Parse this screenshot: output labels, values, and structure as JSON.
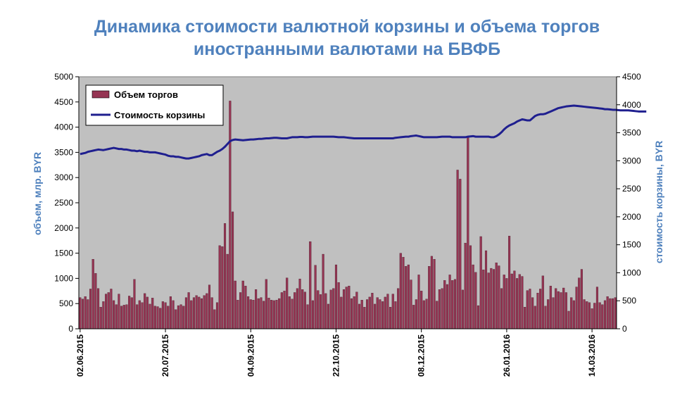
{
  "chart_data": {
    "type": "bar",
    "title_line1": "Динамика стоимости валютной корзины и объема торгов",
    "title_line2": "иностранными валютами на БВФБ",
    "ylabel": "объем, млр. BYR",
    "y2label": "стоимость корзины, BYR",
    "ylim": [
      0,
      5000
    ],
    "y2lim": [
      0,
      4500
    ],
    "y_ticks": [
      "0",
      "500",
      "1000",
      "1500",
      "2000",
      "2500",
      "3000",
      "3500",
      "4000",
      "4500",
      "5000"
    ],
    "y2_ticks": [
      "0",
      "500",
      "1000",
      "1500",
      "2000",
      "2500",
      "3000",
      "3500",
      "4000",
      "4500"
    ],
    "x_tick_labels": [
      "02.06.2015",
      "20.07.2015",
      "04.09.2015",
      "22.10.2015",
      "08.12.2015",
      "26.01.2016",
      "14.03.2016"
    ],
    "x_tick_indices": [
      0,
      33,
      66,
      99,
      132,
      165,
      198
    ],
    "legend_position": "top-left",
    "grid": false,
    "colors": {
      "bars": "#953553",
      "line": "#1f1f8f",
      "plot_bg": "#c0c0c0",
      "label": "#4f81bd"
    },
    "series": [
      {
        "name": "Объем торгов",
        "kind": "bar",
        "axis": "left",
        "values": [
          620,
          590,
          640,
          580,
          790,
          1380,
          1100,
          800,
          430,
          540,
          690,
          720,
          790,
          560,
          480,
          690,
          450,
          470,
          480,
          650,
          620,
          980,
          480,
          560,
          520,
          700,
          630,
          490,
          610,
          450,
          440,
          410,
          540,
          520,
          450,
          640,
          560,
          380,
          460,
          480,
          450,
          620,
          720,
          560,
          620,
          660,
          630,
          600,
          660,
          700,
          870,
          620,
          380,
          520,
          1650,
          1630,
          2090,
          1480,
          4520,
          2320,
          950,
          570,
          720,
          950,
          850,
          640,
          580,
          570,
          780,
          600,
          620,
          550,
          980,
          610,
          570,
          560,
          570,
          600,
          720,
          750,
          1010,
          640,
          590,
          720,
          800,
          990,
          780,
          730,
          480,
          1730,
          560,
          1260,
          760,
          680,
          1480,
          700,
          490,
          770,
          800,
          1270,
          920,
          630,
          780,
          830,
          850,
          600,
          640,
          730,
          490,
          570,
          430,
          580,
          630,
          710,
          490,
          620,
          580,
          540,
          630,
          690,
          430,
          690,
          540,
          800,
          1500,
          1420,
          1240,
          1270,
          970,
          470,
          580,
          1070,
          750,
          560,
          590,
          1240,
          1440,
          1380,
          550,
          780,
          800,
          960,
          880,
          1070,
          960,
          980,
          3150,
          2970,
          770,
          1700,
          3800,
          1650,
          1270,
          1120,
          460,
          1830,
          1170,
          1550,
          1110,
          1200,
          1180,
          1310,
          1250,
          800,
          1070,
          1000,
          1840,
          1090,
          1150,
          1000,
          1080,
          1040,
          430,
          760,
          790,
          620,
          450,
          710,
          790,
          1050,
          450,
          580,
          850,
          620,
          800,
          740,
          720,
          810,
          720,
          350,
          620,
          560,
          830,
          1010,
          1180,
          580,
          540,
          520,
          400,
          510,
          830,
          520,
          480,
          560,
          640,
          600,
          600,
          620
        ]
      },
      {
        "name": "Стоимость корзины",
        "kind": "line",
        "axis": "right",
        "values": [
          3120,
          3130,
          3140,
          3160,
          3170,
          3180,
          3190,
          3200,
          3195,
          3190,
          3200,
          3210,
          3220,
          3230,
          3220,
          3210,
          3210,
          3200,
          3200,
          3190,
          3180,
          3180,
          3170,
          3180,
          3170,
          3160,
          3160,
          3150,
          3150,
          3150,
          3140,
          3130,
          3120,
          3110,
          3090,
          3080,
          3080,
          3070,
          3070,
          3060,
          3050,
          3040,
          3040,
          3050,
          3060,
          3070,
          3080,
          3100,
          3110,
          3120,
          3100,
          3100,
          3130,
          3160,
          3180,
          3210,
          3250,
          3300,
          3350,
          3370,
          3380,
          3375,
          3370,
          3365,
          3370,
          3375,
          3380,
          3380,
          3385,
          3390,
          3390,
          3395,
          3400,
          3400,
          3405,
          3410,
          3410,
          3405,
          3400,
          3400,
          3400,
          3410,
          3420,
          3420,
          3420,
          3425,
          3425,
          3420,
          3420,
          3425,
          3430,
          3430,
          3430,
          3430,
          3430,
          3430,
          3430,
          3430,
          3430,
          3425,
          3420,
          3420,
          3420,
          3415,
          3410,
          3405,
          3400,
          3400,
          3400,
          3400,
          3400,
          3400,
          3400,
          3400,
          3400,
          3400,
          3400,
          3400,
          3400,
          3400,
          3400,
          3400,
          3410,
          3415,
          3420,
          3425,
          3430,
          3430,
          3440,
          3445,
          3450,
          3440,
          3430,
          3420,
          3420,
          3420,
          3420,
          3420,
          3420,
          3425,
          3430,
          3430,
          3430,
          3430,
          3420,
          3420,
          3420,
          3420,
          3420,
          3420,
          3430,
          3435,
          3440,
          3430,
          3430,
          3430,
          3430,
          3430,
          3430,
          3420,
          3420,
          3440,
          3470,
          3510,
          3560,
          3600,
          3630,
          3650,
          3670,
          3700,
          3720,
          3740,
          3730,
          3720,
          3720,
          3760,
          3800,
          3820,
          3830,
          3830,
          3840,
          3860,
          3880,
          3900,
          3920,
          3940,
          3950,
          3960,
          3970,
          3975,
          3980,
          3985,
          3980,
          3975,
          3970,
          3965,
          3960,
          3955,
          3950,
          3945,
          3940,
          3935,
          3930,
          3920,
          3920,
          3915,
          3910,
          3910,
          3905,
          3900,
          3900,
          3900,
          3900,
          3895,
          3890,
          3885,
          3880,
          3880,
          3880,
          3880
        ]
      }
    ]
  }
}
